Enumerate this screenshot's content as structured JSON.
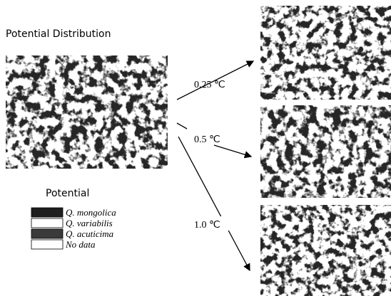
{
  "title": "Potential Distribution",
  "scenarios": [
    {
      "label": "0.25 ℃"
    },
    {
      "label": "0.5 ℃"
    },
    {
      "label": "1.0 ℃"
    }
  ],
  "legend": {
    "title": "Potential",
    "items": [
      {
        "label": "Q. mongolica",
        "color": "#1e1e1e"
      },
      {
        "label": "Q. variabilis",
        "color": "#ffffff"
      },
      {
        "label": "Q. acuticima",
        "color": "#3a3a3a"
      },
      {
        "label": "No data",
        "color": "#ffffff"
      }
    ]
  }
}
